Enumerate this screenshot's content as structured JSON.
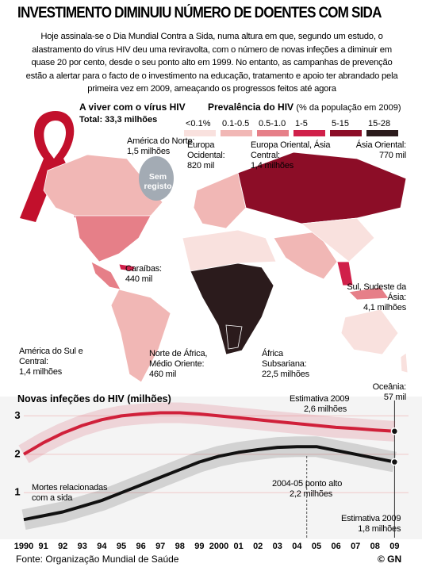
{
  "header": {
    "title": "INVESTIMENTO DIMINUIU NÚMERO DE DOENTES COM SIDA",
    "intro": "Hoje assinala-se o Dia Mundial Contra a Sida, numa altura em que, segundo um estudo, o alastramento do vírus HIV deu uma reviravolta, com o número de novas infeções a diminuir em quase 20 por cento, desde o seu ponto alto em 1999. No entanto, as campanhas de prevenção estão a alertar para o facto de o investimento na educação, tratamento e apoio ter abrandado pela primeira vez em 2009, ameaçando os progressos feitos até agora"
  },
  "map": {
    "title": "A viver com o vírus HIV",
    "total": "Total: 33,3 milhões",
    "legend_title": "Prevalência do HIV",
    "legend_subtitle": "(% da população em 2009)",
    "legend": [
      {
        "label": "<0.1%",
        "color": "#f9e1de"
      },
      {
        "label": "0.1-0.5",
        "color": "#f1b7b5"
      },
      {
        "label": "0.5-1.0",
        "color": "#e67f88"
      },
      {
        "label": "1-5",
        "color": "#d0204a"
      },
      {
        "label": "5-15",
        "color": "#8c0d27"
      },
      {
        "label": "15-28",
        "color": "#2b1b1c"
      }
    ],
    "no_data": {
      "label": "Sem registo",
      "color": "#a3abb4"
    },
    "regions": [
      {
        "name": "América do Norte:",
        "value": "1,5 milhões"
      },
      {
        "name": "Europa Ocidental:",
        "value": "820 mil"
      },
      {
        "name": "Europa Oriental, Ásia Central:",
        "value": "1,4 milhões"
      },
      {
        "name": "Ásia Oriental:",
        "value": "770 mil"
      },
      {
        "name": "Caraíbas:",
        "value": "440 mil"
      },
      {
        "name": "Sul, Sudeste da Ásia:",
        "value": "4,1 milhões"
      },
      {
        "name": "América do Sul e Central:",
        "value": "1,4 milhões"
      },
      {
        "name": "Norte de África, Médio Oriente:",
        "value": "460 mil"
      },
      {
        "name": "África Subsariana:",
        "value": "22,5 milhões"
      },
      {
        "name": "Oceânia:",
        "value": "57 mil"
      }
    ]
  },
  "chart_data": {
    "type": "line",
    "title": "Novas infeções do HIV (milhões)",
    "categories": [
      "1990",
      "91",
      "92",
      "93",
      "94",
      "95",
      "96",
      "97",
      "98",
      "99",
      "2000",
      "01",
      "02",
      "03",
      "04",
      "05",
      "06",
      "07",
      "08",
      "09"
    ],
    "series": [
      {
        "name": "Novas infeções",
        "color": "#d0203a",
        "values": [
          2.0,
          2.3,
          2.55,
          2.75,
          2.9,
          3.0,
          3.05,
          3.08,
          3.08,
          3.05,
          3.0,
          2.95,
          2.9,
          2.85,
          2.8,
          2.75,
          2.7,
          2.67,
          2.63,
          2.6
        ]
      },
      {
        "name": "Mortes relacionadas com a sida",
        "color": "#111111",
        "values": [
          0.3,
          0.4,
          0.5,
          0.65,
          0.8,
          1.0,
          1.2,
          1.4,
          1.6,
          1.8,
          1.95,
          2.05,
          2.12,
          2.18,
          2.2,
          2.2,
          2.1,
          2.0,
          1.9,
          1.8
        ]
      }
    ],
    "ylim": [
      -0.17,
      3.4
    ],
    "yticks": [
      1,
      2,
      3
    ],
    "grid": true,
    "annotations": [
      {
        "title": "Estimativa 2009",
        "text": "2,6 milhões"
      },
      {
        "title": "2004-05 ponto alto",
        "text": "2,2 milhões"
      },
      {
        "title": "Estimativa 2009",
        "text": "1,8 milhões"
      }
    ]
  },
  "footer": {
    "source": "Fonte: Organização Mundial de Saúde",
    "credit": "© GN"
  }
}
